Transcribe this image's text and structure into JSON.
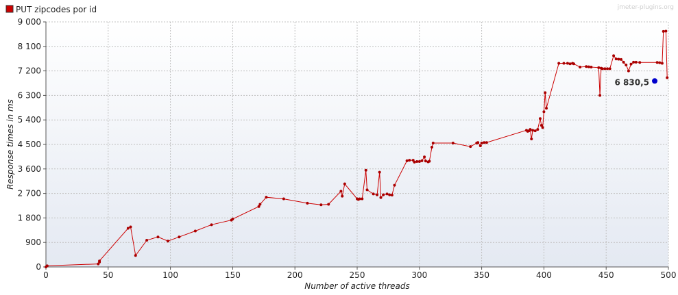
{
  "watermark": "jmeter-plugins.org",
  "legend": [
    {
      "label": "PUT zipcodes por id",
      "color": "#cc0000"
    }
  ],
  "colors": {
    "series": "#cc0000",
    "point": "#aa0000",
    "annotation": "#0000cc",
    "plot_bg_top": "#ffffff",
    "plot_bg_bottom": "#e4e9f2"
  },
  "chart_data": {
    "type": "line",
    "title": "",
    "xlabel": "Number of active threads",
    "ylabel": "Response times in ms",
    "xlim": [
      0,
      500
    ],
    "ylim": [
      0,
      9000
    ],
    "x_ticks": [
      0,
      50,
      100,
      150,
      200,
      250,
      300,
      350,
      400,
      450,
      500
    ],
    "x_tick_labels": [
      "0",
      "50",
      "100",
      "150",
      "200",
      "250",
      "300",
      "350",
      "400",
      "450",
      "500"
    ],
    "y_ticks": [
      0,
      900,
      1800,
      2700,
      3600,
      4500,
      5400,
      6300,
      7200,
      8100,
      9000
    ],
    "y_tick_labels": [
      "0",
      "900",
      "1 800",
      "2 700",
      "3 600",
      "4 500",
      "5 400",
      "6 300",
      "7 200",
      "8 100",
      "9 000"
    ],
    "grid": true,
    "legend_position": "top-left",
    "series": [
      {
        "name": "PUT zipcodes por id",
        "points": [
          [
            0,
            0
          ],
          [
            1,
            40
          ],
          [
            42,
            110
          ],
          [
            43,
            180
          ],
          [
            43,
            220
          ],
          [
            66,
            1420
          ],
          [
            68,
            1470
          ],
          [
            72,
            420
          ],
          [
            81,
            980
          ],
          [
            90,
            1100
          ],
          [
            98,
            950
          ],
          [
            107,
            1100
          ],
          [
            120,
            1320
          ],
          [
            133,
            1550
          ],
          [
            149,
            1720
          ],
          [
            150,
            1760
          ],
          [
            171,
            2220
          ],
          [
            172,
            2300
          ],
          [
            177,
            2560
          ],
          [
            191,
            2500
          ],
          [
            210,
            2340
          ],
          [
            221,
            2280
          ],
          [
            227,
            2300
          ],
          [
            237,
            2780
          ],
          [
            238,
            2600
          ],
          [
            240,
            3050
          ],
          [
            250,
            2500
          ],
          [
            251,
            2480
          ],
          [
            252,
            2500
          ],
          [
            254,
            2500
          ],
          [
            257,
            3550
          ],
          [
            258,
            2830
          ],
          [
            263,
            2680
          ],
          [
            266,
            2650
          ],
          [
            268,
            3480
          ],
          [
            269,
            2550
          ],
          [
            271,
            2650
          ],
          [
            274,
            2680
          ],
          [
            276,
            2650
          ],
          [
            278,
            2640
          ],
          [
            280,
            3000
          ],
          [
            290,
            3900
          ],
          [
            292,
            3920
          ],
          [
            295,
            3920
          ],
          [
            296,
            3850
          ],
          [
            298,
            3870
          ],
          [
            300,
            3870
          ],
          [
            302,
            3900
          ],
          [
            304,
            4040
          ],
          [
            305,
            3890
          ],
          [
            307,
            3860
          ],
          [
            308,
            3880
          ],
          [
            310,
            4400
          ],
          [
            311,
            4550
          ],
          [
            327,
            4550
          ],
          [
            341,
            4420
          ],
          [
            346,
            4550
          ],
          [
            347,
            4570
          ],
          [
            349,
            4450
          ],
          [
            350,
            4550
          ],
          [
            352,
            4570
          ],
          [
            354,
            4570
          ],
          [
            386,
            5020
          ],
          [
            387,
            4980
          ],
          [
            388,
            5000
          ],
          [
            389,
            5050
          ],
          [
            390,
            4700
          ],
          [
            391,
            5020
          ],
          [
            393,
            5000
          ],
          [
            395,
            5050
          ],
          [
            397,
            5450
          ],
          [
            398,
            5200
          ],
          [
            399,
            5120
          ],
          [
            400,
            5700
          ],
          [
            401,
            6400
          ],
          [
            402,
            5830
          ],
          [
            412,
            7480
          ],
          [
            416,
            7480
          ],
          [
            419,
            7480
          ],
          [
            421,
            7460
          ],
          [
            423,
            7480
          ],
          [
            424,
            7460
          ],
          [
            429,
            7340
          ],
          [
            434,
            7360
          ],
          [
            436,
            7350
          ],
          [
            438,
            7340
          ],
          [
            444,
            7320
          ],
          [
            445,
            6300
          ],
          [
            446,
            7300
          ],
          [
            447,
            7280
          ],
          [
            449,
            7280
          ],
          [
            451,
            7280
          ],
          [
            453,
            7280
          ],
          [
            456,
            7760
          ],
          [
            458,
            7640
          ],
          [
            460,
            7630
          ],
          [
            462,
            7620
          ],
          [
            464,
            7520
          ],
          [
            466,
            7420
          ],
          [
            468,
            7200
          ],
          [
            470,
            7450
          ],
          [
            472,
            7520
          ],
          [
            474,
            7520
          ],
          [
            477,
            7510
          ],
          [
            491,
            7510
          ],
          [
            493,
            7500
          ],
          [
            495,
            7480
          ],
          [
            496,
            8650
          ],
          [
            498,
            8660
          ],
          [
            499,
            6950
          ]
        ]
      }
    ],
    "annotations": [
      {
        "x": 489,
        "y": 6830.5,
        "label": "6 830,5"
      }
    ]
  }
}
